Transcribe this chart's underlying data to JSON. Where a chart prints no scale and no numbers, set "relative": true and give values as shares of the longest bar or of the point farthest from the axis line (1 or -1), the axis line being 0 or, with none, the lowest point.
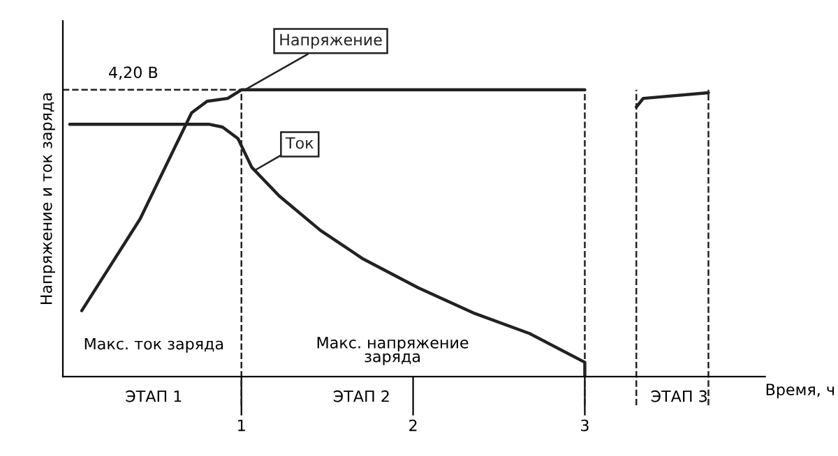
{
  "chart_data": {
    "type": "line",
    "relative": true,
    "ylabel": "Напряжение и ток заряда",
    "xlabel": "Время, ч",
    "xlim": [
      -0.04,
      4.05
    ],
    "xticks": [
      1,
      2,
      3
    ],
    "series": [
      {
        "name": "Напряжение",
        "color": "#222222",
        "x": [
          0.07,
          0.41,
          0.71,
          0.8,
          0.92,
          1.0,
          3.0,
          3.15,
          3.3,
          3.34,
          3.72
        ],
        "values": [
          0.23,
          0.55,
          0.92,
          0.96,
          0.97,
          1.0,
          1.0,
          null,
          0.94,
          0.97,
          0.99
        ]
      },
      {
        "name": "Ток",
        "color": "#222222",
        "x": [
          0.0,
          0.81,
          0.89,
          0.98,
          1.06,
          1.22,
          1.46,
          1.71,
          2.03,
          2.36,
          2.68,
          3.0,
          3.0
        ],
        "values": [
          0.88,
          0.88,
          0.87,
          0.83,
          0.73,
          0.63,
          0.51,
          0.41,
          0.31,
          0.22,
          0.15,
          0.05,
          0.0
        ]
      }
    ],
    "ref_lines": [
      {
        "axis": "y",
        "value": 1.0,
        "label": "4,20 В",
        "line_style": "dashed"
      },
      {
        "axis": "x",
        "value": 1,
        "line_style": "dashed"
      },
      {
        "axis": "x",
        "value": 3,
        "line_style": "dashed"
      },
      {
        "axis": "x",
        "value": 3.3,
        "line_style": "dashed"
      },
      {
        "axis": "x",
        "value": 3.72,
        "line_style": "dashed"
      }
    ],
    "annotations": [
      "Макс. ток заряда",
      "Макс. напряжение\nзаряда",
      "ЭТАП 1",
      "ЭТАП 2",
      "ЭТАП 3"
    ],
    "grid": false,
    "legend": false,
    "marker": "none",
    "line_style": "solid"
  }
}
